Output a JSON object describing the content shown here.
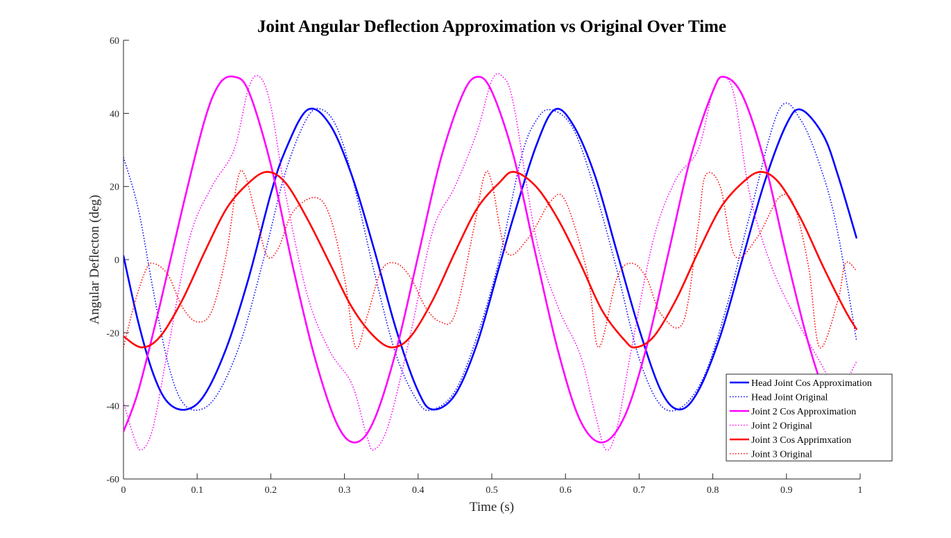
{
  "chart_data": {
    "type": "line",
    "title": "Joint Angular Deflection Approximation vs Original Over Time",
    "xlabel": "Time (s)",
    "ylabel": "Angular Deflecton (deg)",
    "xlim": [
      0,
      1
    ],
    "ylim": [
      -60,
      60
    ],
    "xticks": [
      "0",
      "0.1",
      "0.2",
      "0.3",
      "0.4",
      "0.5",
      "0.6",
      "0.7",
      "0.8",
      "0.9",
      "1"
    ],
    "yticks": [
      "-60",
      "-40",
      "-20",
      "0",
      "20",
      "40",
      "60"
    ],
    "grid": false,
    "legend_position": "bottom-right",
    "series": [
      {
        "name": "Head Joint Cos Approximation",
        "color": "#0000ff",
        "style": "solid",
        "x": [
          0,
          0.02,
          0.04,
          0.06,
          0.085,
          0.11,
          0.14,
          0.17,
          0.2,
          0.22,
          0.25,
          0.28,
          0.31,
          0.34,
          0.37,
          0.4,
          0.42,
          0.45,
          0.48,
          0.51,
          0.53,
          0.56,
          0.585,
          0.61,
          0.64,
          0.67,
          0.7,
          0.73,
          0.755,
          0.78,
          0.81,
          0.84,
          0.87,
          0.9,
          0.92,
          0.95,
          0.97,
          0.995
        ],
        "y": [
          1,
          -17,
          -31,
          -39,
          -41,
          -37,
          -24,
          -5,
          18,
          30,
          41,
          37,
          23,
          3,
          -19,
          -36,
          -41,
          -37,
          -23,
          -2,
          12,
          31,
          41,
          37,
          23,
          2,
          -19,
          -36,
          -41,
          -36,
          -21,
          0,
          21,
          37,
          41,
          34,
          23,
          6
        ]
      },
      {
        "name": "Head Joint Original",
        "color": "#0000ff",
        "style": "dotted",
        "x": [
          0,
          0.02,
          0.04,
          0.06,
          0.08,
          0.105,
          0.13,
          0.16,
          0.19,
          0.22,
          0.25,
          0.27,
          0.29,
          0.31,
          0.34,
          0.37,
          0.4,
          0.42,
          0.45,
          0.48,
          0.51,
          0.54,
          0.56,
          0.58,
          0.61,
          0.64,
          0.67,
          0.7,
          0.73,
          0.76,
          0.79,
          0.82,
          0.85,
          0.89,
          0.92,
          0.95,
          0.97,
          0.995
        ],
        "y": [
          28,
          14,
          -8,
          -28,
          -39,
          -41,
          -36,
          -22,
          0,
          24,
          39,
          41,
          36,
          23,
          -3,
          -26,
          -39,
          -41,
          -36,
          -21,
          0,
          28,
          38,
          41,
          36,
          19,
          -3,
          -27,
          -40,
          -40,
          -31,
          -12,
          12,
          41,
          38,
          23,
          7,
          -22
        ]
      },
      {
        "name": "Joint 2 Cos Approximation",
        "color": "#ff00ff",
        "style": "solid",
        "x": [
          0,
          0.02,
          0.05,
          0.08,
          0.11,
          0.13,
          0.15,
          0.17,
          0.2,
          0.23,
          0.26,
          0.29,
          0.315,
          0.34,
          0.37,
          0.4,
          0.43,
          0.46,
          0.48,
          0.5,
          0.53,
          0.56,
          0.59,
          0.62,
          0.65,
          0.68,
          0.71,
          0.74,
          0.77,
          0.8,
          0.815,
          0.84,
          0.87,
          0.9,
          0.93,
          0.96,
          0.98
        ],
        "y": [
          -47,
          -36,
          -12,
          14,
          38,
          48,
          50,
          46,
          26,
          -2,
          -27,
          -45,
          -50,
          -44,
          -25,
          1,
          27,
          45,
          50,
          46,
          28,
          1,
          -25,
          -44,
          -50,
          -43,
          -24,
          2,
          28,
          46,
          50,
          45,
          27,
          1,
          -23,
          -41,
          -47
        ]
      },
      {
        "name": "Joint 2 Original",
        "color": "#ff00ff",
        "style": "dotted",
        "x": [
          0,
          0.015,
          0.025,
          0.04,
          0.06,
          0.09,
          0.12,
          0.15,
          0.17,
          0.185,
          0.2,
          0.22,
          0.25,
          0.28,
          0.31,
          0.33,
          0.34,
          0.36,
          0.39,
          0.42,
          0.45,
          0.48,
          0.5,
          0.515,
          0.53,
          0.56,
          0.59,
          0.62,
          0.64,
          0.655,
          0.67,
          0.69,
          0.72,
          0.75,
          0.78,
          0.8,
          0.815,
          0.83,
          0.85,
          0.88,
          0.91,
          0.94,
          0.97,
          0.995
        ],
        "y": [
          -39,
          -49,
          -52,
          -46,
          -25,
          6,
          20,
          30,
          47,
          50,
          42,
          18,
          -10,
          -25,
          -34,
          -48,
          -52,
          -45,
          -20,
          8,
          20,
          35,
          49,
          50,
          42,
          6,
          -13,
          -26,
          -42,
          -52,
          -46,
          -24,
          6,
          22,
          30,
          46,
          50,
          44,
          18,
          -2,
          -15,
          -26,
          -35,
          -28
        ]
      },
      {
        "name": "Joint 3 Cos Apprimxation",
        "color": "#ff0000",
        "style": "solid",
        "x": [
          0,
          0.025,
          0.05,
          0.08,
          0.11,
          0.14,
          0.17,
          0.195,
          0.22,
          0.25,
          0.28,
          0.31,
          0.34,
          0.365,
          0.39,
          0.42,
          0.45,
          0.48,
          0.51,
          0.53,
          0.56,
          0.59,
          0.62,
          0.65,
          0.68,
          0.695,
          0.72,
          0.75,
          0.78,
          0.81,
          0.84,
          0.865,
          0.89,
          0.92,
          0.95,
          0.98,
          0.995
        ],
        "y": [
          -21,
          -24,
          -21,
          -11,
          2,
          14,
          21,
          24,
          21,
          11,
          -1,
          -13,
          -21,
          -24,
          -21,
          -11,
          2,
          14,
          21,
          24,
          20,
          11,
          -1,
          -14,
          -22,
          -24,
          -21,
          -11,
          2,
          14,
          21,
          24,
          21,
          11,
          -2,
          -14,
          -19
        ]
      },
      {
        "name": "Joint 3 Original",
        "color": "#ff0000",
        "style": "dotted",
        "x": [
          0,
          0.015,
          0.03,
          0.04,
          0.06,
          0.08,
          0.1,
          0.12,
          0.14,
          0.155,
          0.165,
          0.18,
          0.195,
          0.21,
          0.23,
          0.26,
          0.28,
          0.3,
          0.315,
          0.33,
          0.35,
          0.37,
          0.39,
          0.41,
          0.43,
          0.45,
          0.475,
          0.49,
          0.5,
          0.52,
          0.55,
          0.58,
          0.6,
          0.63,
          0.645,
          0.67,
          0.69,
          0.71,
          0.73,
          0.76,
          0.78,
          0.79,
          0.81,
          0.83,
          0.86,
          0.89,
          0.91,
          0.93,
          0.945,
          0.97,
          0.98,
          0.995
        ],
        "y": [
          -24,
          -12,
          -3,
          -1,
          -4,
          -13,
          -17,
          -14,
          2,
          22,
          23,
          12,
          1,
          3,
          13,
          17,
          12,
          -5,
          -24,
          -16,
          -3,
          -1,
          -5,
          -13,
          -17,
          -15,
          8,
          23,
          21,
          2,
          6,
          16,
          16,
          -4,
          -24,
          -5,
          -1,
          -5,
          -15,
          -17,
          9,
          23,
          20,
          1,
          6,
          17,
          15,
          -2,
          -24,
          -11,
          -1,
          -3
        ]
      }
    ]
  }
}
